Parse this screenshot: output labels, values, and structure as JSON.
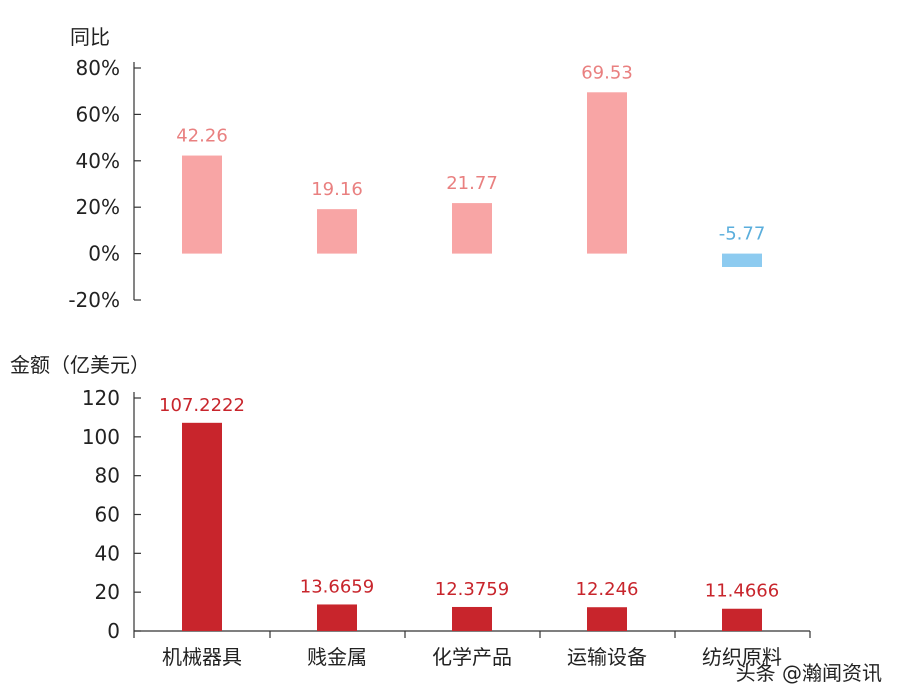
{
  "chart_data": [
    {
      "type": "bar",
      "ylabel": "同比",
      "categories": [
        "机械器具",
        "贱金属",
        "化学产品",
        "运输设备",
        "纺织原料"
      ],
      "values": [
        42.26,
        19.16,
        21.77,
        69.53,
        -5.77
      ],
      "value_labels": [
        "42.26",
        "19.16",
        "21.77",
        "69.53",
        "-5.77"
      ],
      "ylim": [
        -20,
        80
      ],
      "yticks": [
        80,
        60,
        40,
        20,
        0,
        -20
      ],
      "ytick_labels": [
        "80%",
        "60%",
        "40%",
        "20%",
        "0%",
        "-20%"
      ],
      "colors": {
        "positive": "#f8a5a5",
        "negative": "#8dcbf0",
        "positive_label": "#e98080",
        "negative_label": "#5aaedc"
      },
      "grid": false,
      "legend": "none"
    },
    {
      "type": "bar",
      "ylabel": "金额（亿美元）",
      "categories": [
        "机械器具",
        "贱金属",
        "化学产品",
        "运输设备",
        "纺织原料"
      ],
      "values": [
        107.2222,
        13.6659,
        12.3759,
        12.246,
        11.4666
      ],
      "value_labels": [
        "107.2222",
        "13.6659",
        "12.3759",
        "12.246",
        "11.4666"
      ],
      "ylim": [
        0,
        120
      ],
      "yticks": [
        120,
        100,
        80,
        60,
        40,
        20,
        0
      ],
      "ytick_labels": [
        "120",
        "100",
        "80",
        "60",
        "40",
        "20",
        "0"
      ],
      "colors": {
        "bar": "#c8252c",
        "label": "#c8252c"
      },
      "grid": false,
      "legend": "none"
    }
  ],
  "category_labels": [
    "机械器具",
    "贱金属",
    "化学产品",
    "运输设备",
    "纺织原料"
  ],
  "watermark": "头条 @瀚闻资讯"
}
